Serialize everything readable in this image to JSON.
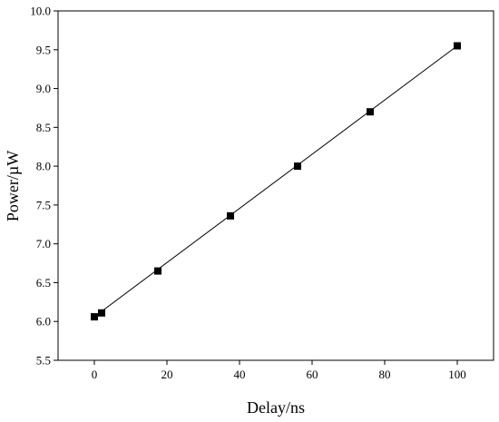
{
  "chart_data": {
    "type": "scatter",
    "title": "",
    "xlabel": "Delay/ns",
    "ylabel": "Power/µW",
    "xlim": [
      -10,
      110
    ],
    "ylim": [
      5.5,
      10.0
    ],
    "xticks": [
      0,
      20,
      40,
      60,
      80,
      100
    ],
    "yticks": [
      5.5,
      6.0,
      6.5,
      7.0,
      7.5,
      8.0,
      8.5,
      9.0,
      9.5,
      10.0
    ],
    "ytick_labels": [
      "5.5",
      "6.0",
      "6.5",
      "7.0",
      "7.5",
      "8.0",
      "8.5",
      "9.0",
      "9.5",
      "10.0"
    ],
    "grid": false,
    "legend": "none",
    "series": [
      {
        "marker": "square",
        "color": "#000000",
        "x": [
          0,
          2,
          17.5,
          37.5,
          56,
          76,
          100
        ],
        "y": [
          6.06,
          6.11,
          6.65,
          7.36,
          8.0,
          8.7,
          9.55
        ]
      }
    ],
    "fit_line": {
      "color": "#000000",
      "x": [
        0,
        100
      ],
      "y": [
        6.06,
        9.55
      ]
    }
  }
}
